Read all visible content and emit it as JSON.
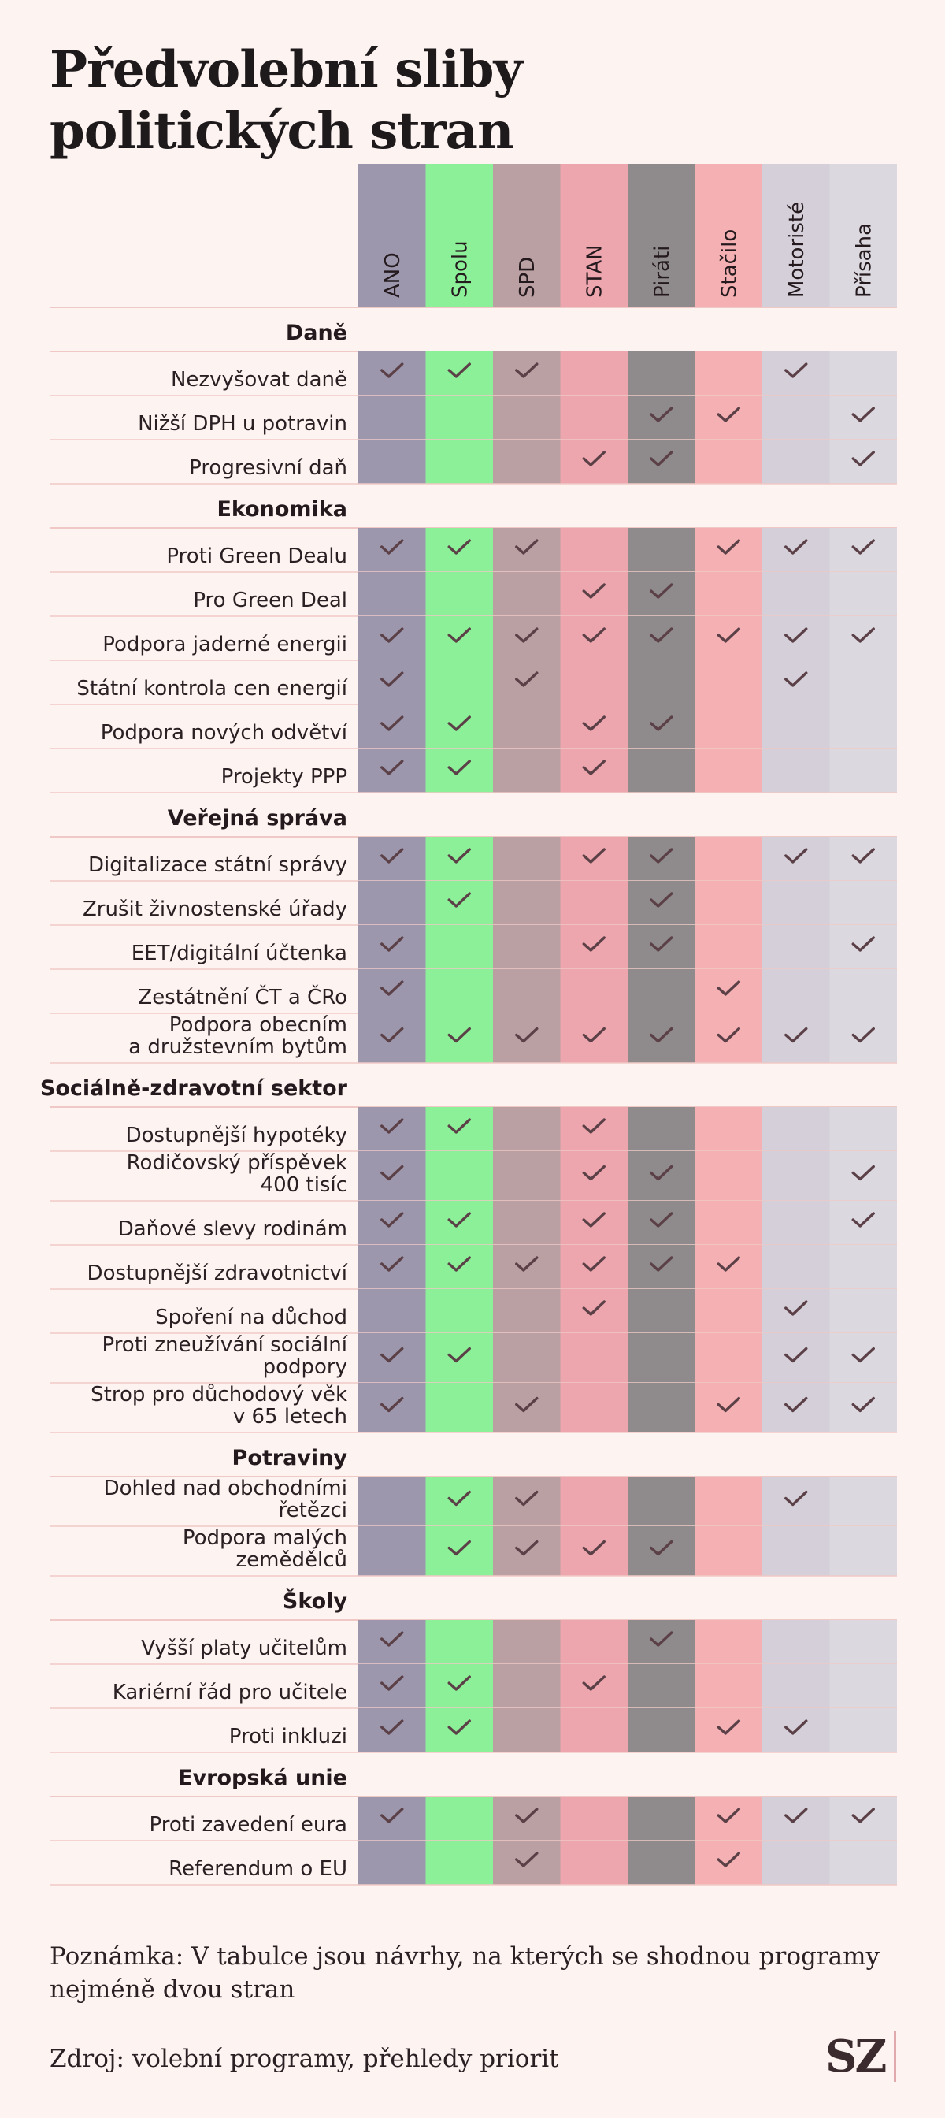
{
  "title": "Předvolební sliby politických stran",
  "note": "Poznámka: V tabulce jsou návrhy, na kterých se shodnou programy nejméně dvou stran",
  "source": "Zdroj: volební programy, přehledy priorit",
  "logo": "SZ",
  "colors": {
    "background": "#fdf3f1",
    "check": "#5b4147",
    "row_line": "#f0c9c6",
    "parties": [
      "#9d97ad",
      "#8cf099",
      "#baa0a3",
      "#eea6ae",
      "#8f8a8b",
      "#f4b0b2",
      "#d4cfd8",
      "#dcd8e0"
    ]
  },
  "chart_data": {
    "type": "table",
    "columns": [
      "ANO",
      "Spolu",
      "SPD",
      "STAN",
      "Piráti",
      "Stačilo",
      "Motoristé",
      "Přísaha"
    ],
    "groups": [
      {
        "name": "Daně",
        "rows": [
          {
            "label": [
              "Nezvyšovat daně"
            ],
            "values": [
              1,
              1,
              1,
              0,
              0,
              0,
              1,
              0
            ]
          },
          {
            "label": [
              "Nižší DPH u potravin"
            ],
            "values": [
              0,
              0,
              0,
              0,
              1,
              1,
              0,
              1
            ]
          },
          {
            "label": [
              "Progresivní daň"
            ],
            "values": [
              0,
              0,
              0,
              1,
              1,
              0,
              0,
              1
            ]
          }
        ]
      },
      {
        "name": "Ekonomika",
        "rows": [
          {
            "label": [
              "Proti Green Dealu"
            ],
            "values": [
              1,
              1,
              1,
              0,
              0,
              1,
              1,
              1
            ]
          },
          {
            "label": [
              "Pro Green Deal"
            ],
            "values": [
              0,
              0,
              0,
              1,
              1,
              0,
              0,
              0
            ]
          },
          {
            "label": [
              "Podpora jaderné energii"
            ],
            "values": [
              1,
              1,
              1,
              1,
              1,
              1,
              1,
              1
            ]
          },
          {
            "label": [
              "Státní kontrola cen energií"
            ],
            "values": [
              1,
              0,
              1,
              0,
              0,
              0,
              1,
              0
            ]
          },
          {
            "label": [
              "Podpora nových odvětví"
            ],
            "values": [
              1,
              1,
              0,
              1,
              1,
              0,
              0,
              0
            ]
          },
          {
            "label": [
              "Projekty PPP"
            ],
            "values": [
              1,
              1,
              0,
              1,
              0,
              0,
              0,
              0
            ]
          }
        ]
      },
      {
        "name": "Veřejná správa",
        "rows": [
          {
            "label": [
              "Digitalizace státní správy"
            ],
            "values": [
              1,
              1,
              0,
              1,
              1,
              0,
              1,
              1
            ]
          },
          {
            "label": [
              "Zrušit živnostenské úřady"
            ],
            "values": [
              0,
              1,
              0,
              0,
              1,
              0,
              0,
              0
            ]
          },
          {
            "label": [
              "EET/digitální účtenka"
            ],
            "values": [
              1,
              0,
              0,
              1,
              1,
              0,
              0,
              1
            ]
          },
          {
            "label": [
              "Zestátnění ČT a ČRo"
            ],
            "values": [
              1,
              0,
              0,
              0,
              0,
              1,
              0,
              0
            ]
          },
          {
            "label": [
              "Podpora obecním",
              "a družstevním bytům"
            ],
            "values": [
              1,
              1,
              1,
              1,
              1,
              1,
              1,
              1
            ]
          }
        ]
      },
      {
        "name": "Sociálně-zdravotní sektor",
        "rows": [
          {
            "label": [
              "Dostupnější hypotéky"
            ],
            "values": [
              1,
              1,
              0,
              1,
              0,
              0,
              0,
              0
            ]
          },
          {
            "label": [
              "Rodičovský příspěvek",
              "400 tisíc"
            ],
            "values": [
              1,
              0,
              0,
              1,
              1,
              0,
              0,
              1
            ]
          },
          {
            "label": [
              "Daňové slevy rodinám"
            ],
            "values": [
              1,
              1,
              0,
              1,
              1,
              0,
              0,
              1
            ]
          },
          {
            "label": [
              "Dostupnější zdravotnictví"
            ],
            "values": [
              1,
              1,
              1,
              1,
              1,
              1,
              0,
              0
            ]
          },
          {
            "label": [
              "Spoření na důchod"
            ],
            "values": [
              0,
              0,
              0,
              1,
              0,
              0,
              1,
              0
            ]
          },
          {
            "label": [
              "Proti zneužívání sociální",
              "podpory"
            ],
            "values": [
              1,
              1,
              0,
              0,
              0,
              0,
              1,
              1
            ]
          },
          {
            "label": [
              "Strop pro důchodový věk",
              "v 65 letech"
            ],
            "values": [
              1,
              0,
              1,
              0,
              0,
              1,
              1,
              1
            ]
          }
        ]
      },
      {
        "name": "Potraviny",
        "rows": [
          {
            "label": [
              "Dohled nad obchodními",
              "řetězci"
            ],
            "values": [
              0,
              1,
              1,
              0,
              0,
              0,
              1,
              0
            ]
          },
          {
            "label": [
              "Podpora malých",
              "zemědělců"
            ],
            "values": [
              0,
              1,
              1,
              1,
              1,
              0,
              0,
              0
            ]
          }
        ]
      },
      {
        "name": "Školy",
        "rows": [
          {
            "label": [
              "Vyšší platy učitelům"
            ],
            "values": [
              1,
              0,
              0,
              0,
              1,
              0,
              0,
              0
            ]
          },
          {
            "label": [
              "Kariérní řád pro učitele"
            ],
            "values": [
              1,
              1,
              0,
              1,
              0,
              0,
              0,
              0
            ]
          },
          {
            "label": [
              "Proti inkluzi"
            ],
            "values": [
              1,
              1,
              0,
              0,
              0,
              1,
              1,
              0
            ]
          }
        ]
      },
      {
        "name": "Evropská unie",
        "rows": [
          {
            "label": [
              "Proti zavedení eura"
            ],
            "values": [
              1,
              0,
              1,
              0,
              0,
              1,
              1,
              1
            ]
          },
          {
            "label": [
              "Referendum o EU"
            ],
            "values": [
              0,
              0,
              1,
              0,
              0,
              1,
              0,
              0
            ]
          }
        ]
      }
    ]
  }
}
